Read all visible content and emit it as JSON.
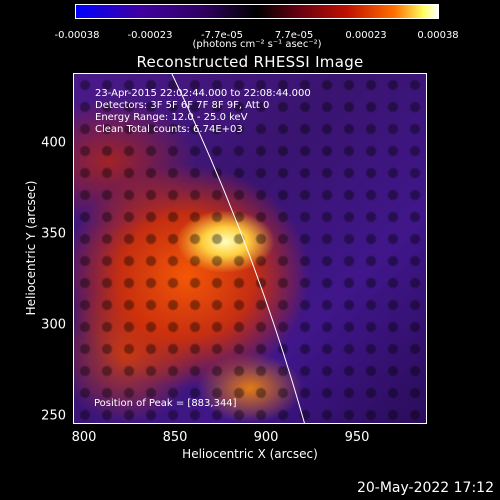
{
  "colorbar": {
    "ticks": [
      "-0.00038",
      "-0.00023",
      "-7.7e-05",
      "7.7e-05",
      "0.00023",
      "0.00038"
    ],
    "unit": "(photons cm⁻² s⁻¹ asec⁻²)"
  },
  "title": "Reconstructed RHESSI Image",
  "info": {
    "time_range": "23-Apr-2015 22:02:44.000 to 22:08:44.000",
    "detectors": "Detectors: 3F 5F 6F 7F 8F 9F, Att 0",
    "energy": "Energy Range: 12.0 - 25.0 keV",
    "clean": "Clean     Total counts: 6.74E+03",
    "peak": "Position of Peak = [883,344]"
  },
  "axes": {
    "xlabel": "Heliocentric X (arcsec)",
    "ylabel": "Heliocentric Y (arcsec)",
    "xticks": [
      "800",
      "850",
      "900",
      "950"
    ],
    "yticks": [
      "400",
      "350",
      "300",
      "250"
    ]
  },
  "timestamp": "20-May-2022 17:12"
}
